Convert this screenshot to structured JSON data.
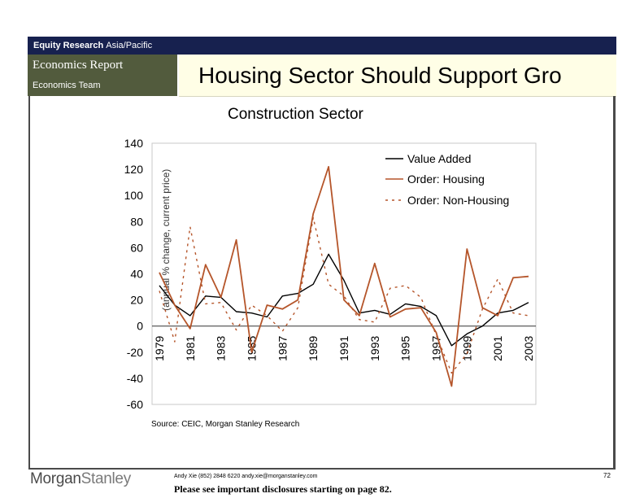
{
  "header": {
    "equity_research": "Equity Research",
    "region": "Asia/Pacific",
    "report_type": "Economics Report",
    "team": "Economics Team",
    "title": "Housing Sector Should Support Gro"
  },
  "colors": {
    "header_bar": "#17214f",
    "header_box": "#525b3d",
    "title_box": "#fffee6",
    "value_added": "#000000",
    "housing": "#b5552a",
    "non_housing": "#b5552a"
  },
  "chart_data": {
    "type": "line",
    "title": "Construction Sector",
    "ylabel": "(annual % change, current price)",
    "xlabel": "",
    "ylim": [
      -60,
      140
    ],
    "yticks": [
      -60,
      -40,
      -20,
      0,
      20,
      40,
      60,
      80,
      100,
      120,
      140
    ],
    "x": [
      1979,
      1980,
      1981,
      1982,
      1983,
      1984,
      1985,
      1986,
      1987,
      1988,
      1989,
      1990,
      1991,
      1992,
      1993,
      1994,
      1995,
      1996,
      1997,
      1998,
      1999,
      2000,
      2001,
      2002,
      2003
    ],
    "xticks": [
      1979,
      1981,
      1983,
      1985,
      1987,
      1989,
      1991,
      1993,
      1995,
      1997,
      1999,
      2001,
      2003
    ],
    "legend_position": "top-right",
    "grid": false,
    "series": [
      {
        "name": "Value Added",
        "style": "solid",
        "values": [
          31,
          16,
          8,
          23,
          22,
          11,
          10,
          7,
          23,
          25,
          32,
          55,
          35,
          10,
          12,
          9,
          17,
          15,
          8,
          -15,
          -6,
          0,
          10,
          12,
          18
        ]
      },
      {
        "name": "Order: Housing",
        "style": "solid",
        "values": [
          41,
          16,
          -2,
          47,
          22,
          66,
          -20,
          16,
          13,
          20,
          86,
          122,
          20,
          8,
          48,
          7,
          13,
          14,
          -5,
          -46,
          59,
          14,
          8,
          37,
          38
        ]
      },
      {
        "name": "Order: Non-Housing",
        "style": "dotted",
        "values": [
          27,
          -12,
          76,
          17,
          18,
          -3,
          16,
          8,
          -4,
          14,
          83,
          32,
          23,
          5,
          3,
          29,
          31,
          22,
          -7,
          -36,
          -21,
          13,
          36,
          10,
          8
        ]
      }
    ]
  },
  "source": "Source: CEIC, Morgan Stanley Research",
  "footer": {
    "logo_a": "Morgan",
    "logo_b": "Stanley",
    "contact": "Andy Xie (852) 2848 6220 andy.xie@morganstanley.com",
    "disclosure": "Please see important disclosures starting on page 82.",
    "page": "72"
  }
}
